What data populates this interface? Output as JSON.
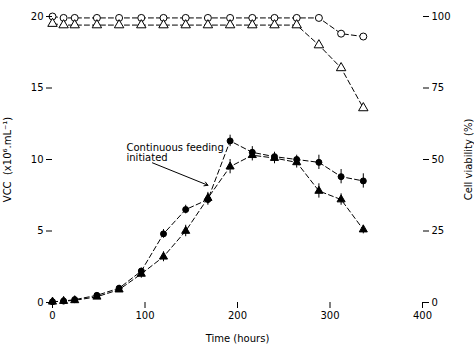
{
  "chart_data": {
    "type": "line",
    "xlabel": "Time (hours)",
    "ylabel": "VCC  (x10⁶.mL⁻¹)",
    "y2label": "Cell viability (%)",
    "xlim": [
      0,
      400
    ],
    "ylim": [
      0,
      20
    ],
    "y2lim": [
      0,
      100
    ],
    "xticks": [
      0,
      100,
      200,
      300,
      400
    ],
    "yticks": [
      0,
      5,
      10,
      15,
      20
    ],
    "y2ticks": [
      0,
      25,
      50,
      75,
      100
    ],
    "series": [
      {
        "axis": "y",
        "color": "#000000",
        "marker": "circle",
        "line_style": "dashed",
        "x": [
          0,
          12,
          24,
          48,
          72,
          96,
          120,
          144,
          168,
          192,
          216,
          240,
          264,
          288,
          312,
          336
        ],
        "values": [
          0.05,
          0.1,
          0.2,
          0.5,
          1.0,
          2.2,
          4.8,
          6.5,
          7.2,
          11.3,
          10.5,
          10.2,
          10.0,
          9.8,
          8.8,
          8.5
        ],
        "errors": [
          0.0,
          0.0,
          0.0,
          0.0,
          0.0,
          0.2,
          0.3,
          0.3,
          0.4,
          0.4,
          0.4,
          0.3,
          0.3,
          0.5,
          0.5,
          0.5
        ]
      },
      {
        "axis": "y",
        "color": "#000000",
        "marker": "triangle",
        "line_style": "dashed",
        "x": [
          0,
          12,
          24,
          48,
          72,
          96,
          120,
          144,
          168,
          192,
          216,
          240,
          264,
          288,
          312,
          336
        ],
        "values": [
          0.05,
          0.1,
          0.15,
          0.4,
          0.9,
          2.0,
          3.2,
          5.0,
          7.3,
          9.5,
          10.3,
          10.1,
          9.8,
          7.8,
          7.2,
          5.1
        ],
        "errors": [
          0.0,
          0.0,
          0.0,
          0.15,
          0.2,
          0.3,
          0.35,
          0.4,
          0.4,
          0.5,
          0.4,
          0.4,
          0.4,
          0.5,
          0.4,
          0.3
        ]
      },
      {
        "axis": "y2",
        "color": "#000000",
        "marker": "open circle",
        "line_style": "dashed",
        "x": [
          0,
          12,
          24,
          48,
          72,
          96,
          120,
          144,
          168,
          192,
          216,
          240,
          264,
          288,
          312,
          336
        ],
        "values": [
          100,
          99.5,
          99.5,
          99.5,
          99.5,
          99.5,
          99.5,
          99.5,
          99.5,
          99.5,
          99.5,
          99.5,
          99.5,
          99.5,
          94,
          93
        ]
      },
      {
        "axis": "y2",
        "color": "#000000",
        "marker": "open triangle",
        "line_style": "dashed",
        "x": [
          0,
          12,
          24,
          48,
          72,
          96,
          120,
          144,
          168,
          192,
          216,
          240,
          264,
          288,
          312,
          336
        ],
        "values": [
          97.5,
          97,
          97,
          97,
          97,
          97,
          97,
          97,
          97,
          97,
          97,
          97,
          97,
          90,
          82,
          68
        ]
      }
    ],
    "annotations": [
      {
        "text": "Continuous feeding\ninitiated",
        "x": 80,
        "y": 10.5,
        "target": [
          168,
          8.2
        ],
        "color": "#000000"
      }
    ]
  }
}
